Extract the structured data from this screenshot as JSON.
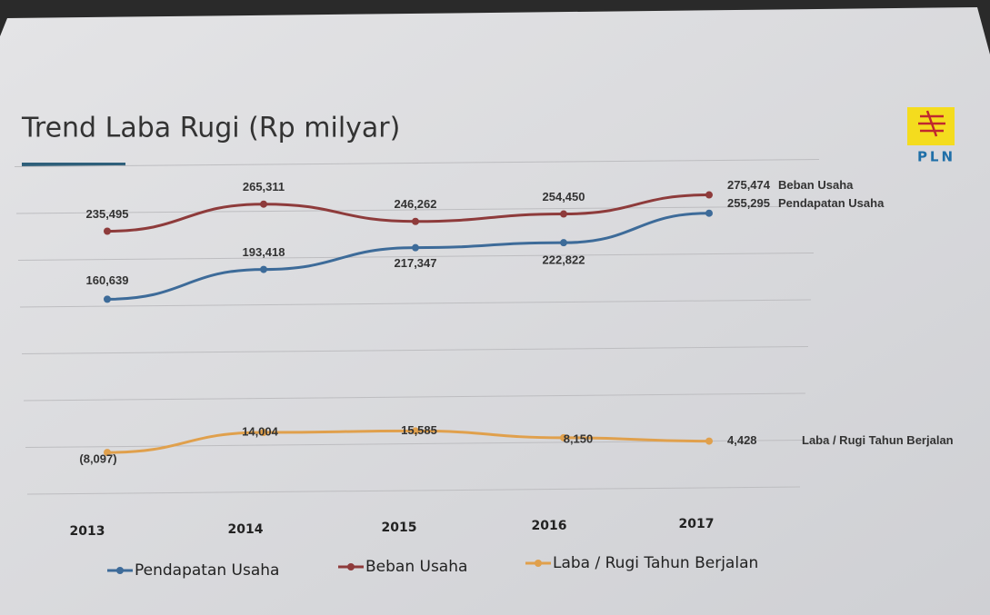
{
  "logo": "PLN",
  "chart_data": {
    "type": "line",
    "title": "Trend Laba Rugi (Rp milyar)",
    "categories": [
      "2013",
      "2014",
      "2015",
      "2016",
      "2017"
    ],
    "ylim": [
      -50000,
      300000
    ],
    "yticks": [
      -50000,
      0,
      50000,
      100000,
      150000,
      200000,
      250000,
      300000
    ],
    "grid": true,
    "legend": "bottom",
    "series": [
      {
        "name": "Pendapatan Usaha",
        "color": "#3d6b99",
        "values": [
          160639,
          193418,
          217347,
          222822,
          255295
        ],
        "value_labels": [
          "160,639",
          "193,418",
          "217,347",
          "222,822",
          "255,295"
        ]
      },
      {
        "name": "Beban Usaha",
        "color": "#8e3b3b",
        "values": [
          235495,
          265311,
          246262,
          254450,
          275474
        ],
        "value_labels": [
          "235,495",
          "265,311",
          "246,262",
          "254,450",
          "275,474"
        ]
      },
      {
        "name": "Laba / Rugi Tahun Berjalan",
        "color": "#e0a04c",
        "values": [
          -8097,
          14004,
          15585,
          8150,
          4428
        ],
        "value_labels": [
          "(8,097)",
          "14,004",
          "15,585",
          "8,150",
          "4,428"
        ]
      }
    ]
  }
}
